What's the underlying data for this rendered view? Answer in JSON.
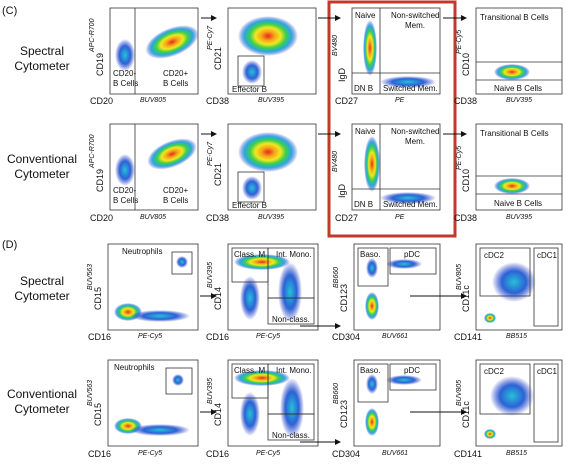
{
  "colors": {
    "accent_box": "#c0392b",
    "density_low": "#2b3cc4",
    "density_high": "#e8281e"
  },
  "panels_c": {
    "label": "(C)",
    "rows": [
      {
        "row_label_line1": "Spectral",
        "row_label_line2": "Cytometer",
        "plots": [
          {
            "x_marker": "CD20",
            "x_fluor": "BUV805",
            "y_marker": "CD19",
            "y_fluor": "APC-R700",
            "gate_a_line1": "CD20-",
            "gate_a_line2": "B Cells",
            "gate_b_line1": "CD20+",
            "gate_b_line2": "B Cells"
          },
          {
            "x_marker": "CD38",
            "x_fluor": "BUV395",
            "y_marker": "CD21",
            "y_fluor": "PE-Cy7",
            "gate_a_line1": "Effector B"
          },
          {
            "x_marker": "CD27",
            "x_fluor": "PE",
            "y_marker": "IgD",
            "y_fluor": "BV480",
            "gate_a_line1": "Naive",
            "gate_b_line1": "Non-switched",
            "gate_b_line2": "Mem.",
            "gate_c_line1": "DN B",
            "gate_d_line1": "Switched Mem."
          },
          {
            "x_marker": "CD38",
            "x_fluor": "BUV395",
            "y_marker": "CD10",
            "y_fluor": "PE-Cy5",
            "gate_a_line1": "Transitional B Cells",
            "gate_b_line1": "Naive B Cells"
          }
        ]
      },
      {
        "row_label_line1": "Conventional",
        "row_label_line2": "Cytometer",
        "plots": [
          {
            "x_marker": "CD20",
            "x_fluor": "BUV805",
            "y_marker": "CD19",
            "y_fluor": "APC-R700",
            "gate_a_line1": "CD20-",
            "gate_a_line2": "B Cells",
            "gate_b_line1": "CD20+",
            "gate_b_line2": "B Cells"
          },
          {
            "x_marker": "CD38",
            "x_fluor": "BUV395",
            "y_marker": "CD21",
            "y_fluor": "PE-Cy7",
            "gate_a_line1": "Effector B"
          },
          {
            "x_marker": "CD27",
            "x_fluor": "PE",
            "y_marker": "IgD",
            "y_fluor": "BV480",
            "gate_a_line1": "Naive",
            "gate_b_line1": "Non-switched",
            "gate_b_line2": "Mem.",
            "gate_c_line1": "DN B",
            "gate_d_line1": "Switched Mem."
          },
          {
            "x_marker": "CD38",
            "x_fluor": "BUV395",
            "y_marker": "CD10",
            "y_fluor": "PE-Cy5",
            "gate_a_line1": "Transitional B Cells",
            "gate_b_line1": "Naive B Cells"
          }
        ]
      }
    ]
  },
  "panels_d": {
    "label": "(D)",
    "rows": [
      {
        "row_label_line1": "Spectral",
        "row_label_line2": "Cytometer",
        "plots": [
          {
            "x_marker": "CD16",
            "x_fluor": "PE-Cy5",
            "y_marker": "CD15",
            "y_fluor": "BUV563",
            "gate_a_line1": "Neutrophils"
          },
          {
            "x_marker": "CD16",
            "x_fluor": "PE-Cy5",
            "y_marker": "CD14",
            "y_fluor": "BUV395",
            "gate_a_line1": "Class. M",
            "gate_b_line1": "Int. Mono.",
            "gate_c_line1": "Non-class."
          },
          {
            "x_marker": "CD304",
            "x_fluor": "BUV661",
            "y_marker": "CD123",
            "y_fluor": "BB660",
            "gate_a_line1": "Baso.",
            "gate_b_line1": "pDC"
          },
          {
            "x_marker": "CD141",
            "x_fluor": "BB515",
            "y_marker": "CD11c",
            "y_fluor": "BUV805",
            "gate_a_line1": "cDC2",
            "gate_b_line1": "cDC1"
          }
        ]
      },
      {
        "row_label_line1": "Conventional",
        "row_label_line2": "Cytometer",
        "plots": [
          {
            "x_marker": "CD16",
            "x_fluor": "PE-Cy5",
            "y_marker": "CD15",
            "y_fluor": "BUV563",
            "gate_a_line1": "Neutrophils"
          },
          {
            "x_marker": "CD16",
            "x_fluor": "PE-Cy5",
            "y_marker": "CD14",
            "y_fluor": "BUV395",
            "gate_a_line1": "Class. M",
            "gate_b_line1": "Int. Mono.",
            "gate_c_line1": "Non-class."
          },
          {
            "x_marker": "CD304",
            "x_fluor": "BUV661",
            "y_marker": "CD123",
            "y_fluor": "BB660",
            "gate_a_line1": "Baso.",
            "gate_b_line1": "pDC"
          },
          {
            "x_marker": "CD141",
            "x_fluor": "BB515",
            "y_marker": "CD11c",
            "y_fluor": "BUV805",
            "gate_a_line1": "cDC2",
            "gate_b_line1": "cDC1"
          }
        ]
      }
    ]
  }
}
